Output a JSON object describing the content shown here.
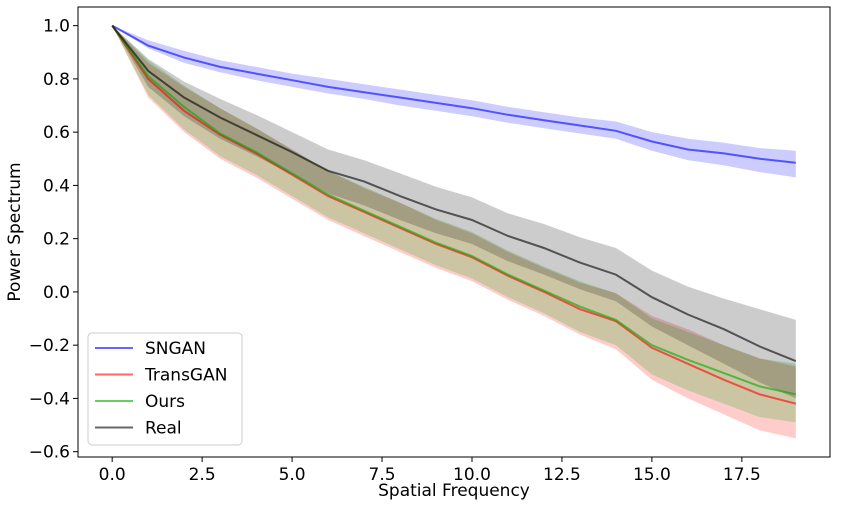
{
  "chart_data": {
    "type": "line",
    "title": "",
    "xlabel": "Spatial Frequency",
    "ylabel": "Power Spectrum",
    "xlim": [
      -0.95,
      19.95
    ],
    "ylim": [
      -0.62,
      1.07
    ],
    "xticks": [
      0.0,
      2.5,
      5.0,
      7.5,
      10.0,
      12.5,
      15.0,
      17.5
    ],
    "xtick_labels": [
      "0.0",
      "2.5",
      "5.0",
      "7.5",
      "10.0",
      "12.5",
      "15.0",
      "17.5"
    ],
    "yticks": [
      1.0,
      0.8,
      0.6,
      0.4,
      0.2,
      0.0,
      -0.2,
      -0.4,
      -0.6
    ],
    "ytick_labels": [
      "1.0",
      "0.8",
      "0.6",
      "0.4",
      "0.2",
      "0.0",
      "−0.2",
      "−0.4",
      "−0.6"
    ],
    "grid": false,
    "legend_position": "lower-left",
    "x": [
      0,
      1,
      2,
      3,
      4,
      5,
      6,
      7,
      8,
      9,
      10,
      11,
      12,
      13,
      14,
      15,
      16,
      17,
      18,
      19
    ],
    "series": [
      {
        "name": "SNGAN",
        "color": "#0000ff",
        "values": [
          1.0,
          0.925,
          0.88,
          0.845,
          0.82,
          0.795,
          0.77,
          0.75,
          0.73,
          0.71,
          0.69,
          0.665,
          0.645,
          0.625,
          0.605,
          0.565,
          0.535,
          0.52,
          0.5,
          0.485
        ],
        "lower": [
          1.0,
          0.915,
          0.86,
          0.825,
          0.795,
          0.77,
          0.745,
          0.725,
          0.7,
          0.68,
          0.66,
          0.635,
          0.615,
          0.595,
          0.575,
          0.53,
          0.495,
          0.475,
          0.45,
          0.43
        ],
        "upper": [
          1.0,
          0.945,
          0.905,
          0.87,
          0.845,
          0.82,
          0.8,
          0.78,
          0.76,
          0.74,
          0.72,
          0.695,
          0.675,
          0.655,
          0.64,
          0.6,
          0.575,
          0.56,
          0.54,
          0.53
        ]
      },
      {
        "name": "TransGAN",
        "color": "#ff0000",
        "values": [
          1.0,
          0.8,
          0.68,
          0.59,
          0.52,
          0.44,
          0.36,
          0.3,
          0.24,
          0.18,
          0.13,
          0.06,
          0.0,
          -0.065,
          -0.11,
          -0.21,
          -0.27,
          -0.33,
          -0.385,
          -0.42
        ],
        "lower": [
          1.0,
          0.73,
          0.6,
          0.5,
          0.43,
          0.35,
          0.27,
          0.21,
          0.15,
          0.09,
          0.04,
          -0.03,
          -0.09,
          -0.16,
          -0.215,
          -0.33,
          -0.4,
          -0.46,
          -0.52,
          -0.55
        ],
        "upper": [
          1.0,
          0.86,
          0.77,
          0.69,
          0.615,
          0.535,
          0.455,
          0.39,
          0.335,
          0.27,
          0.22,
          0.15,
          0.09,
          0.035,
          -0.005,
          -0.09,
          -0.14,
          -0.2,
          -0.25,
          -0.28
        ]
      },
      {
        "name": "Ours",
        "color": "#00aa00",
        "values": [
          1.0,
          0.81,
          0.695,
          0.595,
          0.525,
          0.445,
          0.365,
          0.305,
          0.245,
          0.185,
          0.135,
          0.065,
          0.005,
          -0.055,
          -0.105,
          -0.2,
          -0.255,
          -0.305,
          -0.355,
          -0.385
        ],
        "lower": [
          1.0,
          0.74,
          0.61,
          0.51,
          0.44,
          0.36,
          0.28,
          0.22,
          0.16,
          0.1,
          0.05,
          -0.02,
          -0.08,
          -0.15,
          -0.2,
          -0.31,
          -0.37,
          -0.42,
          -0.47,
          -0.49
        ],
        "upper": [
          1.0,
          0.87,
          0.775,
          0.69,
          0.615,
          0.535,
          0.455,
          0.395,
          0.335,
          0.275,
          0.225,
          0.155,
          0.095,
          0.04,
          -0.005,
          -0.1,
          -0.15,
          -0.2,
          -0.25,
          -0.27
        ]
      },
      {
        "name": "Real",
        "color": "#000000",
        "values": [
          1.0,
          0.83,
          0.73,
          0.655,
          0.59,
          0.525,
          0.455,
          0.415,
          0.36,
          0.31,
          0.27,
          0.21,
          0.165,
          0.11,
          0.065,
          -0.02,
          -0.085,
          -0.14,
          -0.205,
          -0.26
        ],
        "lower": [
          1.0,
          0.77,
          0.66,
          0.575,
          0.51,
          0.44,
          0.37,
          0.325,
          0.27,
          0.22,
          0.18,
          0.115,
          0.065,
          0.01,
          -0.035,
          -0.13,
          -0.2,
          -0.27,
          -0.34,
          -0.4
        ],
        "upper": [
          1.0,
          0.875,
          0.79,
          0.725,
          0.665,
          0.6,
          0.535,
          0.495,
          0.445,
          0.395,
          0.355,
          0.295,
          0.255,
          0.205,
          0.165,
          0.08,
          0.02,
          -0.025,
          -0.065,
          -0.105
        ]
      }
    ]
  }
}
